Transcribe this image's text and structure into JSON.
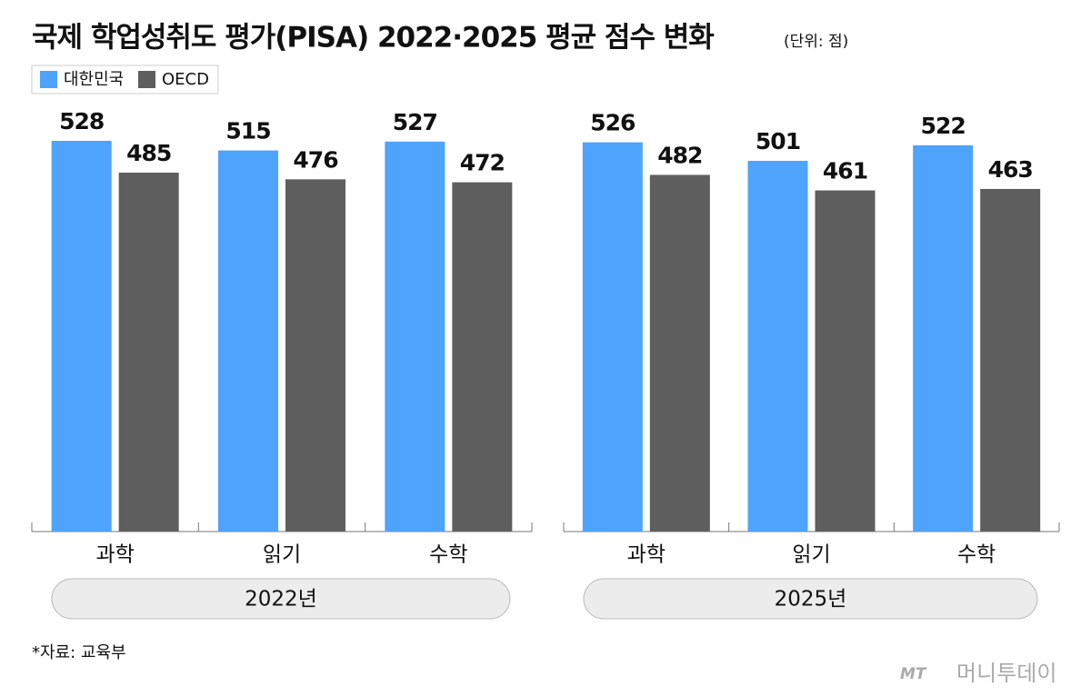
{
  "title": "국제 학업성취도 평가(PISA) 2022·2025 평균 점수 변화",
  "unit": "(단위: 점)",
  "source": "*자료: 교육부",
  "logo": "MT",
  "brand": "머니투데이",
  "chart_data": [
    {
      "type": "bar",
      "xlabel": "2022년",
      "categories": [
        "과학",
        "읽기",
        "수학"
      ],
      "series": [
        {
          "name": "대한민국",
          "color": "#4ea3fb",
          "values": [
            528,
            515,
            527
          ]
        },
        {
          "name": "OECD",
          "color": "#5e5e5e",
          "values": [
            485,
            476,
            472
          ]
        }
      ]
    },
    {
      "type": "bar",
      "xlabel": "2025년",
      "categories": [
        "과학",
        "읽기",
        "수학"
      ],
      "series": [
        {
          "name": "대한민국",
          "color": "#4ea3fb",
          "values": [
            526,
            501,
            522
          ]
        },
        {
          "name": "OECD",
          "color": "#5e5e5e",
          "values": [
            482,
            461,
            463
          ]
        }
      ]
    }
  ]
}
